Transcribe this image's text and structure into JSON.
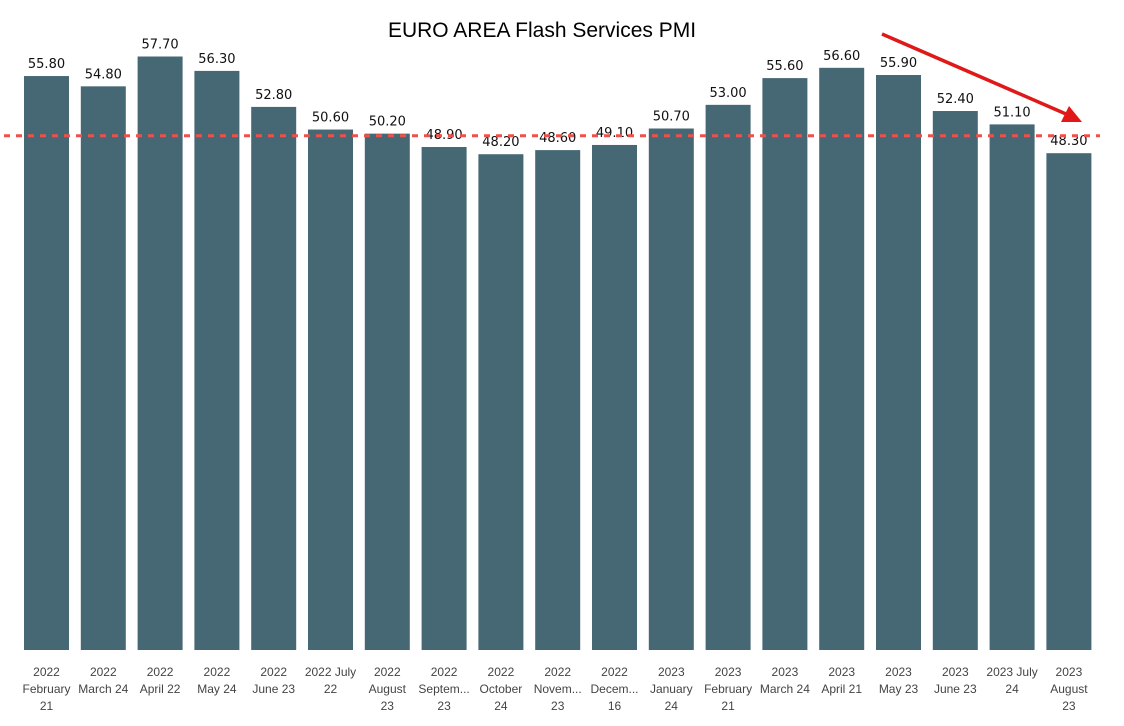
{
  "chart_data": {
    "type": "bar",
    "title": "EURO AREA Flash Services PMI",
    "xlabel": "",
    "ylabel": "",
    "categories": [
      [
        "2022",
        "February",
        "21"
      ],
      [
        "2022",
        "March 24"
      ],
      [
        "2022",
        "April 22"
      ],
      [
        "2022",
        "May 24"
      ],
      [
        "2022",
        "June 23"
      ],
      [
        "2022 July",
        "22"
      ],
      [
        "2022",
        "August",
        "23"
      ],
      [
        "2022",
        "Septem...",
        "23"
      ],
      [
        "2022",
        "October",
        "24"
      ],
      [
        "2022",
        "Novem...",
        "23"
      ],
      [
        "2022",
        "Decem...",
        "16"
      ],
      [
        "2023",
        "January",
        "24"
      ],
      [
        "2023",
        "February",
        "21"
      ],
      [
        "2023",
        "March 24"
      ],
      [
        "2023",
        "April 21"
      ],
      [
        "2023",
        "May 23"
      ],
      [
        "2023",
        "June 23"
      ],
      [
        "2023 July",
        "24"
      ],
      [
        "2023",
        "August",
        "23"
      ]
    ],
    "values": [
      55.8,
      54.8,
      57.7,
      56.3,
      52.8,
      50.6,
      50.2,
      48.9,
      48.2,
      48.6,
      49.1,
      50.7,
      53.0,
      55.6,
      56.6,
      55.9,
      52.4,
      51.1,
      48.3
    ],
    "value_labels": [
      "55.80",
      "54.80",
      "57.70",
      "56.30",
      "52.80",
      "50.60",
      "50.20",
      "48.90",
      "48.20",
      "48.60",
      "49.10",
      "50.70",
      "53.00",
      "55.60",
      "56.60",
      "55.90",
      "52.40",
      "51.10",
      "48.30"
    ],
    "reference_line": 50,
    "grid": false,
    "colors": {
      "bar": "#466874",
      "reference_line": "#f0504a",
      "arrow": "#e01818"
    }
  }
}
